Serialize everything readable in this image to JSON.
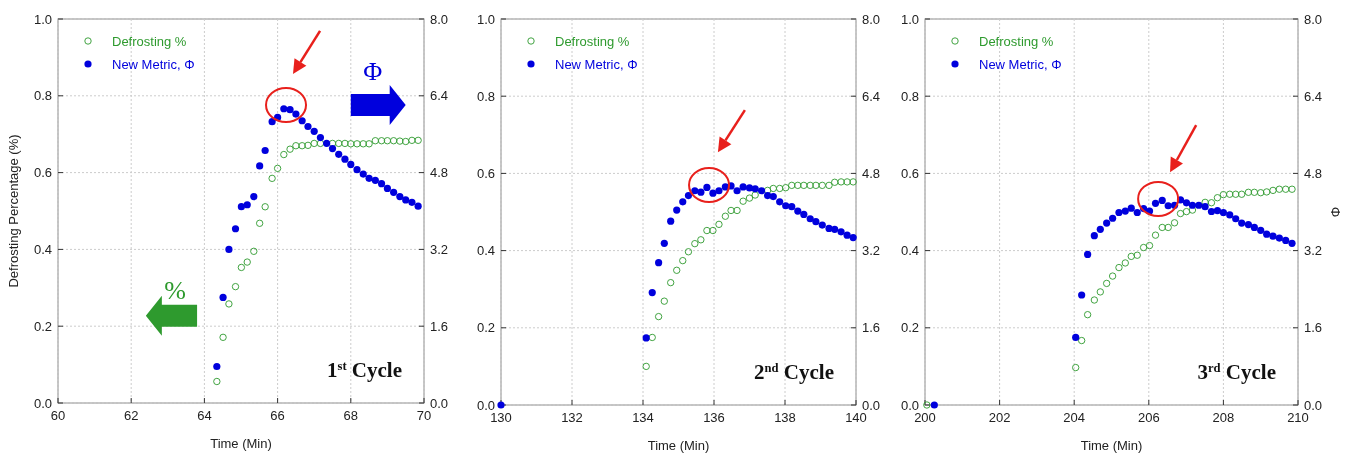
{
  "chart_data": [
    {
      "type": "scatter",
      "xlabel": "Time (Min)",
      "ylabel": "Defrosting Percentage (%)",
      "xlim": [
        60,
        70
      ],
      "xticks": [
        60,
        62,
        64,
        66,
        68,
        70
      ],
      "ylim": [
        0,
        1
      ],
      "yticks": [
        {
          "value": 0,
          "label": "0.0"
        },
        {
          "value": 0.2,
          "label": "0.2"
        },
        {
          "value": 0.4,
          "label": "0.4"
        },
        {
          "value": 0.6,
          "label": "0.6"
        },
        {
          "value": 0.8,
          "label": "0.8"
        },
        {
          "value": 1,
          "label": "1.0"
        }
      ],
      "y2lim": [
        0,
        8
      ],
      "y2ticks": [
        {
          "value": 0,
          "label": "0.0"
        },
        {
          "value": 1.6,
          "label": "1.6"
        },
        {
          "value": 3.2,
          "label": "3.2"
        },
        {
          "value": 4.8,
          "label": "4.8"
        },
        {
          "value": 6.4,
          "label": "6.4"
        },
        {
          "value": 8,
          "label": "8.0"
        }
      ],
      "grid": true,
      "legend": "top left",
      "marker": "circle",
      "annotations": [
        "1$^{st}$ Cycle",
        "%",
        "Φ"
      ],
      "series": [
        {
          "name": "Defrosting %",
          "color": "#2e9a2e",
          "x": [
            64.34,
            64.51,
            64.67,
            64.85,
            65.01,
            65.17,
            65.35,
            65.51,
            65.66,
            65.85,
            66.0,
            66.17,
            66.34,
            66.5,
            66.67,
            66.83,
            67.0,
            67.17,
            67.5,
            67.67,
            67.84,
            68.0,
            68.17,
            68.34,
            68.5,
            68.67,
            68.84,
            69.0,
            69.17,
            69.34,
            69.5,
            69.67,
            69.84
          ],
          "values": [
            0.056,
            0.171,
            0.258,
            0.303,
            0.353,
            0.367,
            0.395,
            0.468,
            0.511,
            0.585,
            0.611,
            0.647,
            0.661,
            0.67,
            0.67,
            0.671,
            0.676,
            0.676,
            0.676,
            0.676,
            0.676,
            0.675,
            0.675,
            0.675,
            0.675,
            0.683,
            0.683,
            0.683,
            0.683,
            0.682,
            0.681,
            0.684,
            0.684
          ]
        },
        {
          "name": "New Metric, Φ",
          "color": "#0000dd",
          "axis": "y2",
          "x": [
            64.34,
            64.51,
            64.67,
            64.85,
            65.01,
            65.17,
            65.35,
            65.51,
            65.66,
            65.85,
            66.0,
            66.17,
            66.34,
            66.5,
            66.67,
            66.83,
            67.0,
            67.17,
            67.34,
            67.5,
            67.67,
            67.84,
            68.0,
            68.17,
            68.34,
            68.5,
            68.67,
            68.84,
            69.0,
            69.17,
            69.34,
            69.5,
            69.67,
            69.84
          ],
          "values": [
            0.76,
            2.2,
            3.2,
            3.63,
            4.09,
            4.13,
            4.3,
            4.94,
            5.26,
            5.86,
            5.95,
            6.13,
            6.11,
            6.02,
            5.88,
            5.76,
            5.66,
            5.53,
            5.41,
            5.3,
            5.18,
            5.08,
            4.97,
            4.86,
            4.77,
            4.68,
            4.64,
            4.57,
            4.47,
            4.39,
            4.3,
            4.23,
            4.18,
            4.1
          ]
        }
      ]
    },
    {
      "type": "scatter",
      "xlabel": "Time (Min)",
      "xlim": [
        130,
        140
      ],
      "xticks": [
        130,
        132,
        134,
        136,
        138,
        140
      ],
      "ylim": [
        0,
        1
      ],
      "yticks": [
        {
          "value": 0,
          "label": "0.0"
        },
        {
          "value": 0.2,
          "label": "0.2"
        },
        {
          "value": 0.4,
          "label": "0.4"
        },
        {
          "value": 0.6,
          "label": "0.6"
        },
        {
          "value": 0.8,
          "label": "0.8"
        },
        {
          "value": 1,
          "label": "1.0"
        }
      ],
      "y2lim": [
        0,
        8
      ],
      "y2ticks": [
        {
          "value": 0,
          "label": "0.0"
        },
        {
          "value": 1.6,
          "label": "1.6"
        },
        {
          "value": 3.2,
          "label": "3.2"
        },
        {
          "value": 4.8,
          "label": "4.8"
        },
        {
          "value": 6.4,
          "label": "6.4"
        },
        {
          "value": 8,
          "label": "8.0"
        }
      ],
      "grid": true,
      "legend": "top left",
      "marker": "circle",
      "annotations": [
        "2$^{nd}$ Cycle"
      ],
      "series": [
        {
          "name": "Defrosting %",
          "color": "#2e9a2e",
          "x": [
            134.09,
            134.26,
            134.44,
            134.6,
            134.78,
            134.95,
            135.12,
            135.28,
            135.46,
            135.63,
            135.8,
            135.97,
            136.14,
            136.32,
            136.48,
            136.65,
            136.82,
            137.0,
            137.16,
            137.51,
            137.67,
            137.85,
            138.02,
            138.19,
            138.36,
            138.53,
            138.71,
            138.87,
            139.05,
            139.24,
            139.4,
            139.58,
            139.75,
            139.92
          ],
          "values": [
            0.1,
            0.175,
            0.229,
            0.269,
            0.317,
            0.349,
            0.374,
            0.397,
            0.418,
            0.428,
            0.452,
            0.452,
            0.468,
            0.489,
            0.504,
            0.504,
            0.528,
            0.536,
            0.544,
            0.556,
            0.561,
            0.561,
            0.563,
            0.569,
            0.569,
            0.569,
            0.569,
            0.569,
            0.569,
            0.569,
            0.577,
            0.578,
            0.578,
            0.578
          ]
        },
        {
          "name": "New Metric, Φ",
          "color": "#0000dd",
          "axis": "y2",
          "x": [
            130.0,
            134.09,
            134.26,
            134.44,
            134.6,
            134.78,
            134.95,
            135.12,
            135.28,
            135.46,
            135.63,
            135.8,
            135.97,
            136.14,
            136.32,
            136.48,
            136.65,
            136.82,
            137.0,
            137.16,
            137.34,
            137.51,
            137.67,
            137.85,
            138.02,
            138.19,
            138.36,
            138.53,
            138.71,
            138.87,
            139.05,
            139.24,
            139.4,
            139.58,
            139.75,
            139.92
          ],
          "values": [
            0,
            1.39,
            2.33,
            2.95,
            3.35,
            3.81,
            4.04,
            4.21,
            4.34,
            4.44,
            4.41,
            4.51,
            4.39,
            4.44,
            4.52,
            4.54,
            4.44,
            4.52,
            4.5,
            4.48,
            4.44,
            4.34,
            4.32,
            4.21,
            4.13,
            4.11,
            4.02,
            3.95,
            3.86,
            3.8,
            3.73,
            3.66,
            3.64,
            3.59,
            3.52,
            3.47
          ]
        }
      ]
    },
    {
      "type": "scatter",
      "xlabel": "Time (Min)",
      "y2label": "Φ",
      "xlim": [
        200,
        210
      ],
      "xticks": [
        200,
        202,
        204,
        206,
        208,
        210
      ],
      "ylim": [
        0,
        1
      ],
      "yticks": [
        {
          "value": 0,
          "label": "0.0"
        },
        {
          "value": 0.2,
          "label": "0.2"
        },
        {
          "value": 0.4,
          "label": "0.4"
        },
        {
          "value": 0.6,
          "label": "0.6"
        },
        {
          "value": 0.8,
          "label": "0.8"
        },
        {
          "value": 1,
          "label": "1.0"
        }
      ],
      "y2lim": [
        0,
        8
      ],
      "y2ticks": [
        {
          "value": 0,
          "label": "0.0"
        },
        {
          "value": 1.6,
          "label": "1.6"
        },
        {
          "value": 3.2,
          "label": "3.2"
        },
        {
          "value": 4.8,
          "label": "4.8"
        },
        {
          "value": 6.4,
          "label": "6.4"
        },
        {
          "value": 8,
          "label": "8.0"
        }
      ],
      "grid": true,
      "legend": "top left",
      "marker": "circle",
      "annotations": [
        "3$^{rd}$ Cycle"
      ],
      "series": [
        {
          "name": "Defrosting %",
          "color": "#2e9a2e",
          "x": [
            200.05,
            204.04,
            204.2,
            204.36,
            204.54,
            204.7,
            204.87,
            205.03,
            205.2,
            205.37,
            205.53,
            205.69,
            205.86,
            206.02,
            206.18,
            206.36,
            206.52,
            206.69,
            206.85,
            207.01,
            207.17,
            207.51,
            207.68,
            207.84,
            208.0,
            208.17,
            208.33,
            208.49,
            208.67,
            208.83,
            209.0,
            209.16,
            209.33,
            209.5,
            209.67,
            209.84
          ],
          "values": [
            0,
            0.097,
            0.167,
            0.234,
            0.272,
            0.293,
            0.315,
            0.334,
            0.356,
            0.368,
            0.385,
            0.388,
            0.408,
            0.413,
            0.44,
            0.46,
            0.46,
            0.472,
            0.496,
            0.501,
            0.505,
            0.525,
            0.524,
            0.537,
            0.545,
            0.546,
            0.546,
            0.546,
            0.551,
            0.551,
            0.55,
            0.552,
            0.556,
            0.559,
            0.559,
            0.559
          ]
        },
        {
          "name": "New Metric, Φ",
          "color": "#0000dd",
          "axis": "y2",
          "x": [
            200.25,
            204.04,
            204.2,
            204.36,
            204.54,
            204.7,
            204.87,
            205.03,
            205.2,
            205.37,
            205.53,
            205.69,
            205.86,
            206.02,
            206.18,
            206.36,
            206.52,
            206.69,
            206.85,
            207.01,
            207.17,
            207.34,
            207.51,
            207.68,
            207.84,
            208.0,
            208.17,
            208.33,
            208.49,
            208.67,
            208.83,
            209.0,
            209.16,
            209.33,
            209.5,
            209.67,
            209.84
          ],
          "values": [
            0,
            1.4,
            2.28,
            3.12,
            3.51,
            3.64,
            3.77,
            3.87,
            3.99,
            4.02,
            4.08,
            3.99,
            4.07,
            4.02,
            4.18,
            4.24,
            4.13,
            4.14,
            4.25,
            4.19,
            4.14,
            4.14,
            4.11,
            4.01,
            4.03,
            3.99,
            3.94,
            3.86,
            3.77,
            3.74,
            3.68,
            3.62,
            3.54,
            3.5,
            3.46,
            3.41,
            3.35
          ]
        }
      ]
    }
  ]
}
